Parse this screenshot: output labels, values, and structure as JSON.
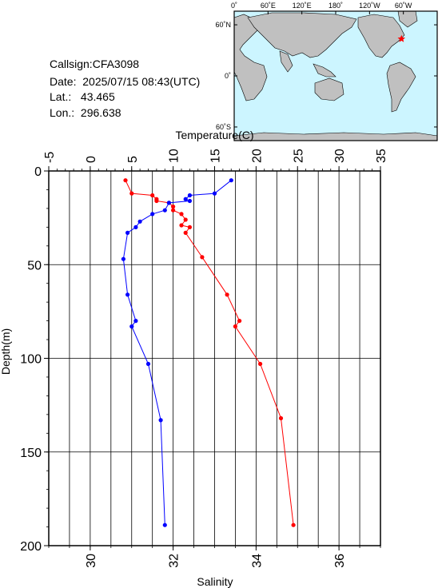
{
  "station": {
    "callsign_label": "Callsign:",
    "callsign": "CFA3098",
    "date_label": "Date:",
    "date": "2025/07/15 08:43(UTC)",
    "lat_label": "Lat.:",
    "lat": "43.465",
    "lon_label": "Lon.:",
    "lon": "296.638"
  },
  "map": {
    "lon_ticks": [
      "0˚",
      "60˚E",
      "120˚E",
      "180˚",
      "120˚W",
      "60˚W"
    ],
    "lat_ticks": [
      "60˚N",
      "0˚",
      "60˚S"
    ],
    "ocean_color": "#ccf5ff",
    "land_color": "#c0c0c0",
    "marker_color": "#ff0000",
    "marker_lat": 43.465,
    "marker_lon": 296.638
  },
  "chart_data": {
    "type": "line",
    "xlabel_top": "Temperature(C)",
    "xlabel_bottom": "Salinity",
    "ylabel": "Depth(m)",
    "temperature_axis": {
      "range": [
        -5,
        35
      ],
      "ticks": [
        -5,
        0,
        5,
        10,
        15,
        20,
        25,
        30,
        35
      ]
    },
    "salinity_axis": {
      "range": [
        29,
        37
      ],
      "ticks": [
        30,
        32,
        34,
        36
      ]
    },
    "depth_axis": {
      "range": [
        0,
        200
      ],
      "ticks": [
        0,
        50,
        100,
        150,
        200
      ],
      "inverted": true
    },
    "grid": true,
    "series": [
      {
        "color": "#ff0000",
        "axis": "salinity",
        "points": [
          [
            30.85,
            5
          ],
          [
            31.0,
            12
          ],
          [
            31.5,
            13
          ],
          [
            31.6,
            15
          ],
          [
            31.6,
            16
          ],
          [
            31.9,
            17
          ],
          [
            32.0,
            19
          ],
          [
            32.0,
            21
          ],
          [
            32.2,
            23
          ],
          [
            32.3,
            26
          ],
          [
            32.2,
            29
          ],
          [
            32.4,
            30
          ],
          [
            32.3,
            33
          ],
          [
            32.7,
            46
          ],
          [
            33.3,
            66
          ],
          [
            33.6,
            80
          ],
          [
            33.5,
            83
          ],
          [
            34.1,
            103
          ],
          [
            34.6,
            132
          ],
          [
            34.9,
            189
          ]
        ]
      },
      {
        "color": "#0000ff",
        "axis": "temperature",
        "points": [
          [
            17.0,
            5
          ],
          [
            15.0,
            12
          ],
          [
            12.0,
            13
          ],
          [
            11.5,
            15
          ],
          [
            12.0,
            16
          ],
          [
            9.5,
            17
          ],
          [
            9.0,
            21
          ],
          [
            7.5,
            23
          ],
          [
            6.0,
            27
          ],
          [
            5.5,
            30
          ],
          [
            4.5,
            33
          ],
          [
            4.0,
            47
          ],
          [
            4.5,
            66
          ],
          [
            5.5,
            80
          ],
          [
            5.0,
            83
          ],
          [
            7.0,
            103
          ],
          [
            8.5,
            133
          ],
          [
            9.0,
            189
          ]
        ]
      }
    ]
  }
}
